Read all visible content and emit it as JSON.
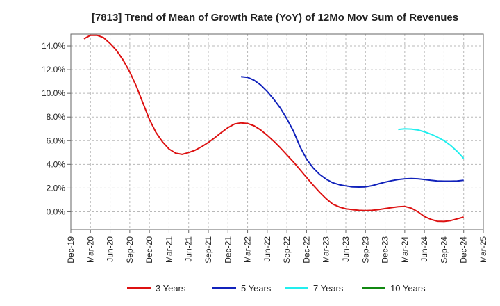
{
  "chart_data": {
    "type": "line",
    "title": "[7813]  Trend of Mean of Growth Rate (YoY) of 12Mo Mov Sum of Revenues",
    "xlabel": "",
    "ylabel": "",
    "ylim": [
      -1.5,
      15.0
    ],
    "y_ticks": [
      0,
      2,
      4,
      6,
      8,
      10,
      12,
      14
    ],
    "y_tick_labels": [
      "0.0%",
      "2.0%",
      "4.0%",
      "6.0%",
      "8.0%",
      "10.0%",
      "12.0%",
      "14.0%"
    ],
    "x_tick_labels": [
      "Dec-19",
      "Mar-20",
      "Jun-20",
      "Sep-20",
      "Dec-20",
      "Mar-21",
      "Jun-21",
      "Sep-21",
      "Dec-21",
      "Mar-22",
      "Jun-22",
      "Sep-22",
      "Dec-22",
      "Mar-23",
      "Jun-23",
      "Sep-23",
      "Dec-23",
      "Mar-24",
      "Jun-24",
      "Sep-24",
      "Dec-24",
      "Mar-25"
    ],
    "x_unit": "month index from Dec-19",
    "xlim": [
      0,
      63
    ],
    "grid": true,
    "legend_position": "bottom",
    "series": [
      {
        "name": "3 Years",
        "color": "#dd1111",
        "x": [
          2,
          3,
          4,
          5,
          6,
          7,
          8,
          9,
          10,
          11,
          12,
          13,
          14,
          15,
          16,
          17,
          18,
          19,
          20,
          21,
          22,
          23,
          24,
          25,
          26,
          27,
          28,
          29,
          30,
          31,
          32,
          33,
          34,
          35,
          36,
          37,
          38,
          39,
          40,
          41,
          42,
          43,
          44,
          45,
          46,
          47,
          48,
          49,
          50,
          51,
          52,
          53,
          54,
          55,
          56,
          57,
          58,
          59,
          60
        ],
        "values": [
          14.6,
          14.9,
          14.9,
          14.7,
          14.2,
          13.6,
          12.8,
          11.8,
          10.6,
          9.2,
          7.8,
          6.7,
          5.9,
          5.3,
          4.95,
          4.85,
          5.0,
          5.2,
          5.5,
          5.85,
          6.25,
          6.7,
          7.1,
          7.4,
          7.5,
          7.45,
          7.25,
          6.9,
          6.45,
          5.95,
          5.4,
          4.8,
          4.2,
          3.55,
          2.9,
          2.25,
          1.65,
          1.1,
          0.65,
          0.4,
          0.25,
          0.18,
          0.12,
          0.1,
          0.12,
          0.18,
          0.27,
          0.35,
          0.42,
          0.45,
          0.3,
          0.0,
          -0.4,
          -0.65,
          -0.8,
          -0.82,
          -0.75,
          -0.6,
          -0.45
        ]
      },
      {
        "name": "5 Years",
        "color": "#1122bb",
        "x": [
          26,
          27,
          28,
          29,
          30,
          31,
          32,
          33,
          34,
          35,
          36,
          37,
          38,
          39,
          40,
          41,
          42,
          43,
          44,
          45,
          46,
          47,
          48,
          49,
          50,
          51,
          52,
          53,
          54,
          55,
          56,
          57,
          58,
          59,
          60
        ],
        "values": [
          11.4,
          11.35,
          11.1,
          10.7,
          10.15,
          9.5,
          8.75,
          7.85,
          6.8,
          5.5,
          4.45,
          3.7,
          3.15,
          2.75,
          2.45,
          2.28,
          2.18,
          2.1,
          2.08,
          2.1,
          2.2,
          2.35,
          2.5,
          2.62,
          2.72,
          2.78,
          2.8,
          2.78,
          2.72,
          2.65,
          2.6,
          2.58,
          2.58,
          2.6,
          2.65
        ]
      },
      {
        "name": "7 Years",
        "color": "#22eeee",
        "x": [
          50,
          51,
          52,
          53,
          54,
          55,
          56,
          57,
          58,
          59,
          60
        ],
        "values": [
          6.95,
          7.0,
          6.98,
          6.9,
          6.75,
          6.55,
          6.3,
          6.0,
          5.6,
          5.1,
          4.5
        ]
      },
      {
        "name": "10 Years",
        "color": "#118811",
        "x": [],
        "values": []
      }
    ]
  }
}
